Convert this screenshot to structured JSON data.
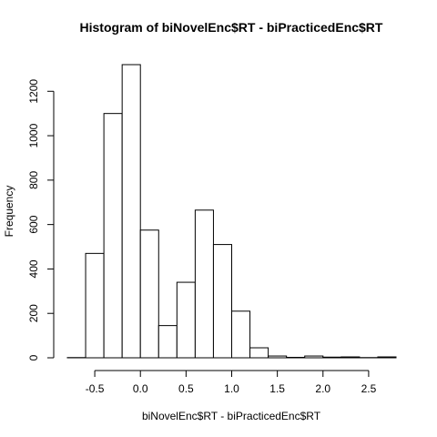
{
  "chart_data": {
    "type": "bar",
    "title": "Histogram of biNovelEnc$RT - biPracticedEnc$RT",
    "xlabel": "biNovelEnc$RT - biPracticedEnc$RT",
    "ylabel": "Frequency",
    "xlim": [
      -0.8,
      2.8
    ],
    "ylim": [
      0,
      1320
    ],
    "bin_width": 0.2,
    "bins": [
      {
        "start": -0.8,
        "end": -0.6,
        "count": 1
      },
      {
        "start": -0.6,
        "end": -0.4,
        "count": 470
      },
      {
        "start": -0.4,
        "end": -0.2,
        "count": 1100
      },
      {
        "start": -0.2,
        "end": 0.0,
        "count": 1320
      },
      {
        "start": 0.0,
        "end": 0.2,
        "count": 575
      },
      {
        "start": 0.2,
        "end": 0.4,
        "count": 145
      },
      {
        "start": 0.4,
        "end": 0.6,
        "count": 340
      },
      {
        "start": 0.6,
        "end": 0.8,
        "count": 665
      },
      {
        "start": 0.8,
        "end": 1.0,
        "count": 510
      },
      {
        "start": 1.0,
        "end": 1.2,
        "count": 210
      },
      {
        "start": 1.2,
        "end": 1.4,
        "count": 45
      },
      {
        "start": 1.4,
        "end": 1.6,
        "count": 8
      },
      {
        "start": 1.6,
        "end": 1.8,
        "count": 2
      },
      {
        "start": 1.8,
        "end": 2.0,
        "count": 8
      },
      {
        "start": 2.0,
        "end": 2.2,
        "count": 3
      },
      {
        "start": 2.2,
        "end": 2.4,
        "count": 4
      },
      {
        "start": 2.4,
        "end": 2.6,
        "count": 1
      },
      {
        "start": 2.6,
        "end": 2.8,
        "count": 4
      }
    ],
    "x_ticks": [
      -0.5,
      0.0,
      0.5,
      1.0,
      1.5,
      2.0,
      2.5
    ],
    "x_tick_labels": [
      "-0.5",
      "0.0",
      "0.5",
      "1.0",
      "1.5",
      "2.0",
      "2.5"
    ],
    "y_ticks": [
      0,
      200,
      400,
      600,
      800,
      1000,
      1200
    ],
    "y_tick_labels": [
      "0",
      "200",
      "400",
      "600",
      "800",
      "1000",
      "1200"
    ],
    "grid": false,
    "legend": "none",
    "colors": {
      "bar_fill": "#ffffff",
      "bar_stroke": "#000000"
    }
  }
}
